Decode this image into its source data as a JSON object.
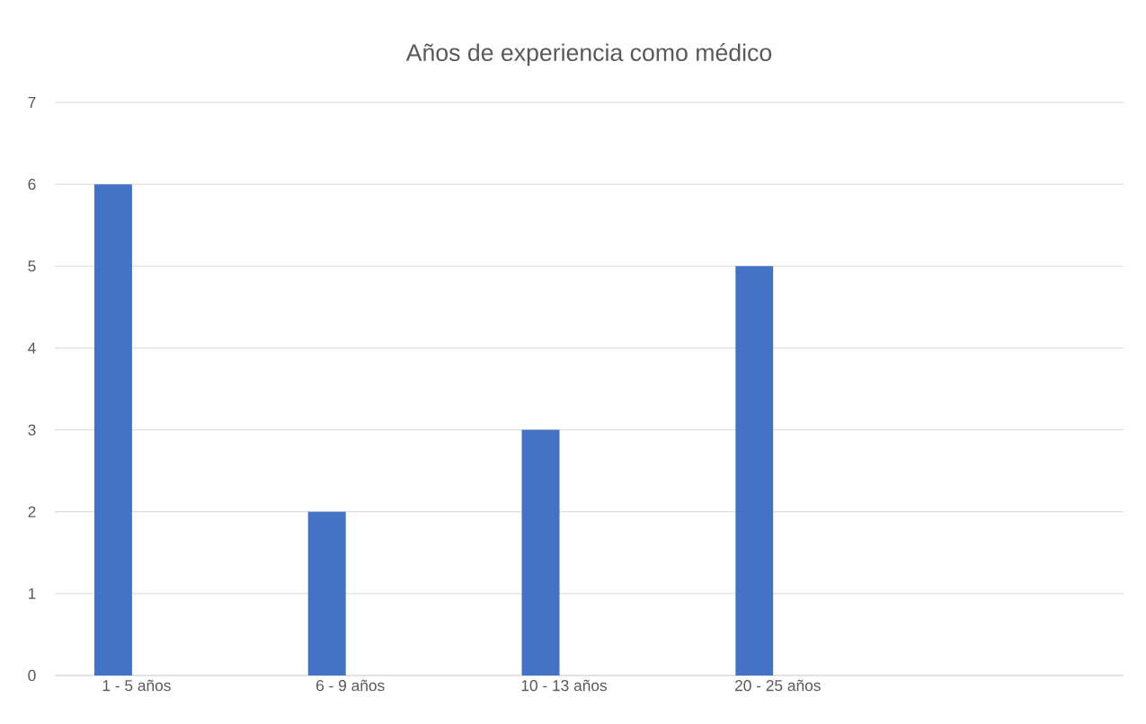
{
  "chart_data": {
    "type": "bar",
    "title": "Años de experiencia  como médico",
    "categories": [
      "1 - 5 años",
      "6 - 9 años",
      "10 - 13 años",
      "20 - 25 años",
      null
    ],
    "values": [
      6,
      2,
      3,
      5,
      null
    ],
    "color": "#4472c4",
    "ylim": [
      0,
      7
    ],
    "yticks": [
      0,
      1,
      2,
      3,
      4,
      5,
      6,
      7
    ],
    "grid": "y"
  }
}
